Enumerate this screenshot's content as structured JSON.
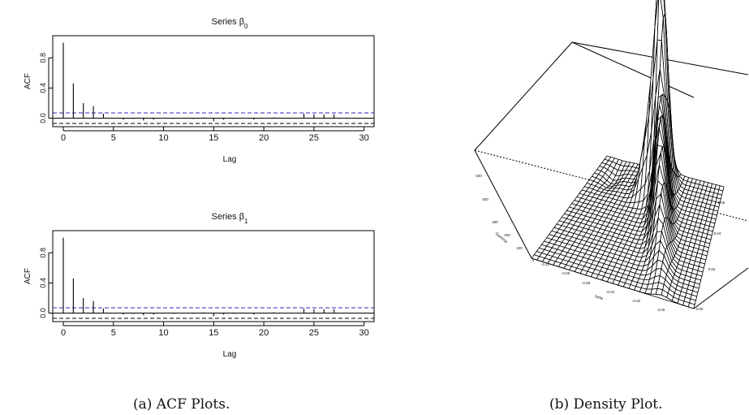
{
  "chart_data": [
    {
      "type": "bar",
      "title": "Series β",
      "title_subscript": "0",
      "xlabel": "Lag",
      "ylabel": "ACF",
      "xlim": [
        0,
        31
      ],
      "ylim": [
        -0.07,
        1.05
      ],
      "x_ticks": [
        "0",
        "5",
        "10",
        "15",
        "20",
        "25",
        "30"
      ],
      "y_ticks": [
        "0.0",
        "0.4",
        "0.8"
      ],
      "lags": [
        0,
        1,
        2,
        3,
        4,
        5,
        6,
        7,
        8,
        9,
        10,
        11,
        12,
        13,
        14,
        15,
        16,
        17,
        18,
        19,
        20,
        21,
        22,
        23,
        24,
        25,
        26,
        27,
        28,
        29,
        30
      ],
      "values": [
        1.0,
        0.46,
        0.2,
        0.16,
        0.06,
        0.0,
        -0.02,
        -0.01,
        -0.03,
        -0.02,
        0.0,
        -0.01,
        0.0,
        -0.01,
        0.01,
        -0.04,
        -0.02,
        -0.01,
        0.0,
        -0.02,
        0.0,
        0.01,
        0.0,
        0.0,
        0.06,
        0.05,
        0.05,
        0.05,
        0.0,
        0.0,
        0.0
      ],
      "confidence_band": 0.07
    },
    {
      "type": "bar",
      "title": "Series β",
      "title_subscript": "1",
      "xlabel": "Lag",
      "ylabel": "ACF",
      "xlim": [
        0,
        31
      ],
      "ylim": [
        -0.07,
        1.05
      ],
      "x_ticks": [
        "0",
        "5",
        "10",
        "15",
        "20",
        "25",
        "30"
      ],
      "y_ticks": [
        "0.0",
        "0.4",
        "0.8"
      ],
      "lags": [
        0,
        1,
        2,
        3,
        4,
        5,
        6,
        7,
        8,
        9,
        10,
        11,
        12,
        13,
        14,
        15,
        16,
        17,
        18,
        19,
        20,
        21,
        22,
        23,
        24,
        25,
        26,
        27,
        28,
        29,
        30
      ],
      "values": [
        1.0,
        0.46,
        0.2,
        0.16,
        0.06,
        0.0,
        -0.02,
        -0.01,
        -0.03,
        -0.02,
        0.0,
        -0.01,
        0.0,
        -0.01,
        0.01,
        -0.04,
        -0.02,
        -0.01,
        0.0,
        -0.02,
        0.0,
        0.01,
        0.0,
        0.0,
        0.06,
        0.05,
        0.05,
        0.05,
        0.0,
        0.0,
        0.0
      ],
      "confidence_band": 0.07
    },
    {
      "type": "surface",
      "axis_labels": [
        "Gamma",
        "beta"
      ],
      "depth_ticks": [
        "0",
        "100",
        "200",
        "300",
        "400",
        "500"
      ],
      "front_ticks": [
        "-0.10",
        "-0.08",
        "-0.06",
        "-0.04",
        "-0.02",
        "0.00"
      ],
      "right_ticks": [
        "0.00",
        "0.02",
        "0.04",
        "0.06"
      ]
    }
  ],
  "captions": {
    "left": "(a)  ACF Plots.",
    "right": "(b)  Density Plot."
  },
  "colors": {
    "confidence_line": "#2b2bc8",
    "axis": "#000000"
  }
}
